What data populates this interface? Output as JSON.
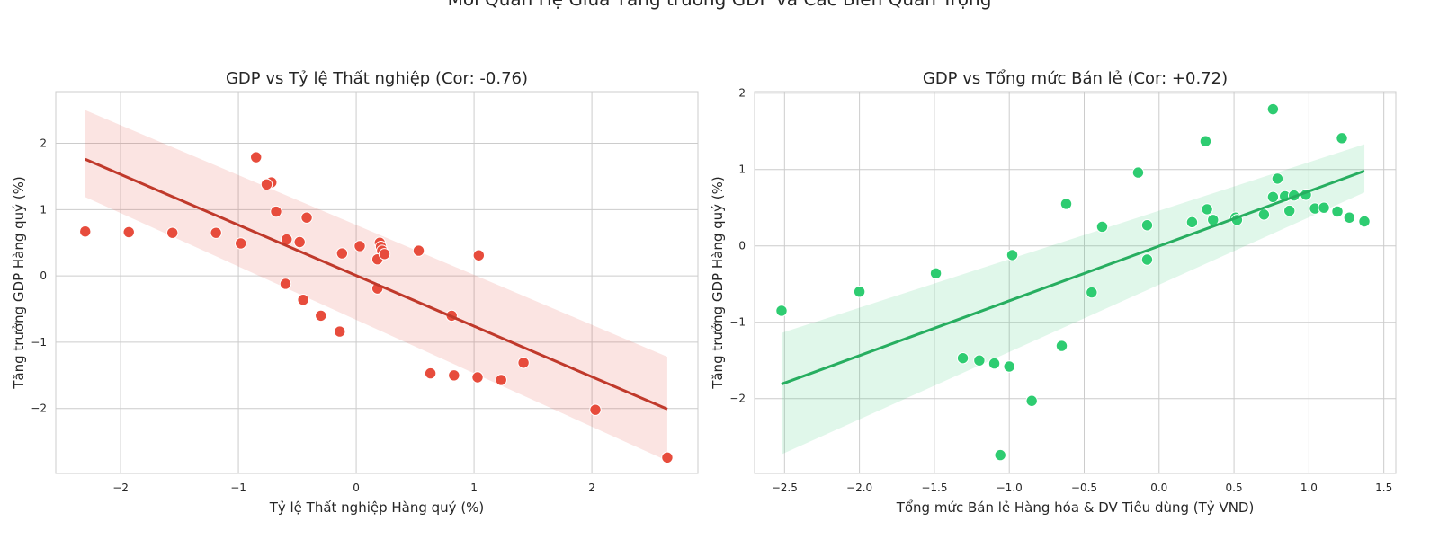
{
  "figure": {
    "suptitle": "Mối Quan Hệ Giữa Tăng trưởng GDP và Các Biến Quan Trọng"
  },
  "chart_data": [
    {
      "type": "scatter",
      "title": "GDP vs Tỷ lệ Thất nghiệp (Cor: -0.76)",
      "xlabel": "Tỷ lệ Thất nghiệp Hàng quý (%)",
      "ylabel": "Tăng trưởng GDP Hàng quý (%)",
      "xlim": [
        -2.55,
        2.9
      ],
      "ylim": [
        -2.98,
        2.78
      ],
      "xticks": [
        -2,
        -1,
        0,
        1,
        2
      ],
      "yticks": [
        -2,
        -1,
        0,
        1,
        2
      ],
      "xtick_labels": [
        "−2",
        "−1",
        "0",
        "1",
        "2"
      ],
      "ytick_labels": [
        "−2",
        "−1",
        "0",
        "1",
        "2"
      ],
      "grid": true,
      "color": "#e74c3c",
      "line_color": "#c0392b",
      "band_color": "#e74c3c",
      "points": [
        {
          "x": -2.3,
          "y": 0.67
        },
        {
          "x": -1.93,
          "y": 0.66
        },
        {
          "x": -1.56,
          "y": 0.65
        },
        {
          "x": -1.19,
          "y": 0.65
        },
        {
          "x": -0.98,
          "y": 0.49
        },
        {
          "x": -0.85,
          "y": 1.79
        },
        {
          "x": -0.72,
          "y": 1.41
        },
        {
          "x": -0.76,
          "y": 1.38
        },
        {
          "x": -0.68,
          "y": 0.97
        },
        {
          "x": -0.42,
          "y": 0.88
        },
        {
          "x": -0.59,
          "y": 0.55
        },
        {
          "x": -0.48,
          "y": 0.51
        },
        {
          "x": -0.12,
          "y": 0.34
        },
        {
          "x": 0.03,
          "y": 0.45
        },
        {
          "x": 0.2,
          "y": 0.5
        },
        {
          "x": 0.21,
          "y": 0.44
        },
        {
          "x": 0.22,
          "y": 0.38
        },
        {
          "x": 0.18,
          "y": 0.25
        },
        {
          "x": 0.24,
          "y": 0.33
        },
        {
          "x": 0.53,
          "y": 0.38
        },
        {
          "x": 1.04,
          "y": 0.31
        },
        {
          "x": -0.6,
          "y": -0.12
        },
        {
          "x": -0.45,
          "y": -0.36
        },
        {
          "x": -0.3,
          "y": -0.6
        },
        {
          "x": -0.14,
          "y": -0.84
        },
        {
          "x": 0.18,
          "y": -0.19
        },
        {
          "x": 0.81,
          "y": -0.6
        },
        {
          "x": 0.63,
          "y": -1.47
        },
        {
          "x": 0.83,
          "y": -1.5
        },
        {
          "x": 1.03,
          "y": -1.53
        },
        {
          "x": 1.23,
          "y": -1.57
        },
        {
          "x": 1.42,
          "y": -1.31
        },
        {
          "x": 2.03,
          "y": -2.02
        },
        {
          "x": 2.64,
          "y": -2.74
        }
      ],
      "regression": {
        "x": [
          -2.3,
          2.64
        ],
        "y": [
          1.76,
          -2.01
        ]
      },
      "band": {
        "x": [
          -2.3,
          2.64
        ],
        "lower": [
          1.19,
          -2.79
        ],
        "upper": [
          2.5,
          -1.22
        ]
      }
    },
    {
      "type": "scatter",
      "title": "GDP vs Tổng mức Bán lẻ (Cor: +0.72)",
      "xlabel": "Tổng mức Bán lẻ Hàng hóa & DV Tiêu dùng (Tỷ VND)",
      "ylabel": "Tăng trưởng GDP Hàng quý (%)",
      "xlim": [
        -2.7,
        1.58
      ],
      "ylim": [
        -2.98,
        2.02
      ],
      "xticks": [
        -2.5,
        -2.0,
        -1.5,
        -1.0,
        -0.5,
        0.0,
        0.5,
        1.0,
        1.5
      ],
      "yticks": [
        -2,
        -1,
        0,
        1,
        2
      ],
      "xtick_labels": [
        "−2.5",
        "−2.0",
        "−1.5",
        "−1.0",
        "−0.5",
        "0.0",
        "0.5",
        "1.0",
        "1.5"
      ],
      "ytick_labels": [
        "−2",
        "−1",
        "0",
        "1",
        "2"
      ],
      "grid": true,
      "color": "#2ecc71",
      "line_color": "#27ae60",
      "band_color": "#2ecc71",
      "points": [
        {
          "x": -2.52,
          "y": -0.85
        },
        {
          "x": -2.0,
          "y": -0.6
        },
        {
          "x": -1.49,
          "y": -0.36
        },
        {
          "x": -0.98,
          "y": -0.12
        },
        {
          "x": -1.31,
          "y": -1.47
        },
        {
          "x": -1.2,
          "y": -1.5
        },
        {
          "x": -1.1,
          "y": -1.54
        },
        {
          "x": -1.0,
          "y": -1.58
        },
        {
          "x": -0.85,
          "y": -2.03
        },
        {
          "x": -1.06,
          "y": -2.74
        },
        {
          "x": -0.65,
          "y": -1.31
        },
        {
          "x": -0.62,
          "y": 0.55
        },
        {
          "x": -0.45,
          "y": -0.61
        },
        {
          "x": -0.38,
          "y": 0.25
        },
        {
          "x": -0.14,
          "y": 0.96
        },
        {
          "x": -0.08,
          "y": 0.27
        },
        {
          "x": -0.08,
          "y": -0.18
        },
        {
          "x": 0.22,
          "y": 0.31
        },
        {
          "x": 0.31,
          "y": 1.37
        },
        {
          "x": 0.32,
          "y": 0.48
        },
        {
          "x": 0.36,
          "y": 0.34
        },
        {
          "x": 0.51,
          "y": 0.37
        },
        {
          "x": 0.52,
          "y": 0.34
        },
        {
          "x": 0.7,
          "y": 0.41
        },
        {
          "x": 0.76,
          "y": 1.79
        },
        {
          "x": 0.76,
          "y": 0.64
        },
        {
          "x": 0.79,
          "y": 0.88
        },
        {
          "x": 0.84,
          "y": 0.65
        },
        {
          "x": 0.87,
          "y": 0.46
        },
        {
          "x": 0.9,
          "y": 0.66
        },
        {
          "x": 0.98,
          "y": 0.67
        },
        {
          "x": 1.04,
          "y": 0.49
        },
        {
          "x": 1.1,
          "y": 0.5
        },
        {
          "x": 1.19,
          "y": 0.45
        },
        {
          "x": 1.22,
          "y": 1.41
        },
        {
          "x": 1.27,
          "y": 0.37
        },
        {
          "x": 1.37,
          "y": 0.32
        }
      ],
      "regression": {
        "x": [
          -2.52,
          1.37
        ],
        "y": [
          -1.81,
          0.98
        ]
      },
      "band": {
        "x": [
          -2.52,
          1.37
        ],
        "lower": [
          -2.73,
          0.7
        ],
        "upper": [
          -1.14,
          1.33
        ]
      }
    }
  ]
}
